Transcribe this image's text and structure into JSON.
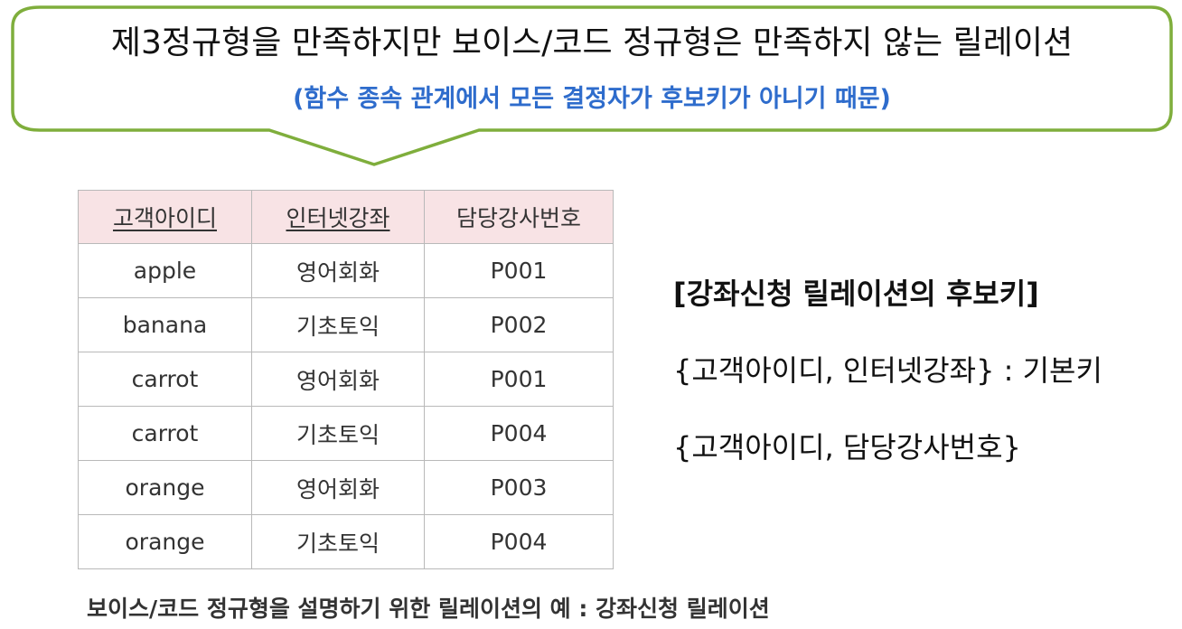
{
  "callout": {
    "title": "제3정규형을 만족하지만 보이스/코드 정규형은 만족하지 않는 릴레이션",
    "subtitle": "(함수 종속 관계에서 모든 결정자가 후보키가 아니기 때문)",
    "border_color": "#7fae3c",
    "subtitle_color": "#2e6ccc"
  },
  "table": {
    "header_bg": "#f8e3e5",
    "headers": [
      "고객아이디",
      "인터넷강좌",
      "담당강사번호"
    ],
    "rows": [
      [
        "apple",
        "영어회화",
        "P001"
      ],
      [
        "banana",
        "기초토익",
        "P002"
      ],
      [
        "carrot",
        "영어회화",
        "P001"
      ],
      [
        "carrot",
        "기초토익",
        "P004"
      ],
      [
        "orange",
        "영어회화",
        "P003"
      ],
      [
        "orange",
        "기초토익",
        "P004"
      ]
    ]
  },
  "candidate_keys": {
    "title": "[강좌신청 릴레이션의 후보키]",
    "lines": [
      "{고객아이디, 인터넷강좌} : 기본키",
      "{고객아이디, 담당강사번호}"
    ]
  },
  "caption": "보이스/코드 정규형을 설명하기 위한 릴레이션의 예 : 강좌신청 릴레이션"
}
